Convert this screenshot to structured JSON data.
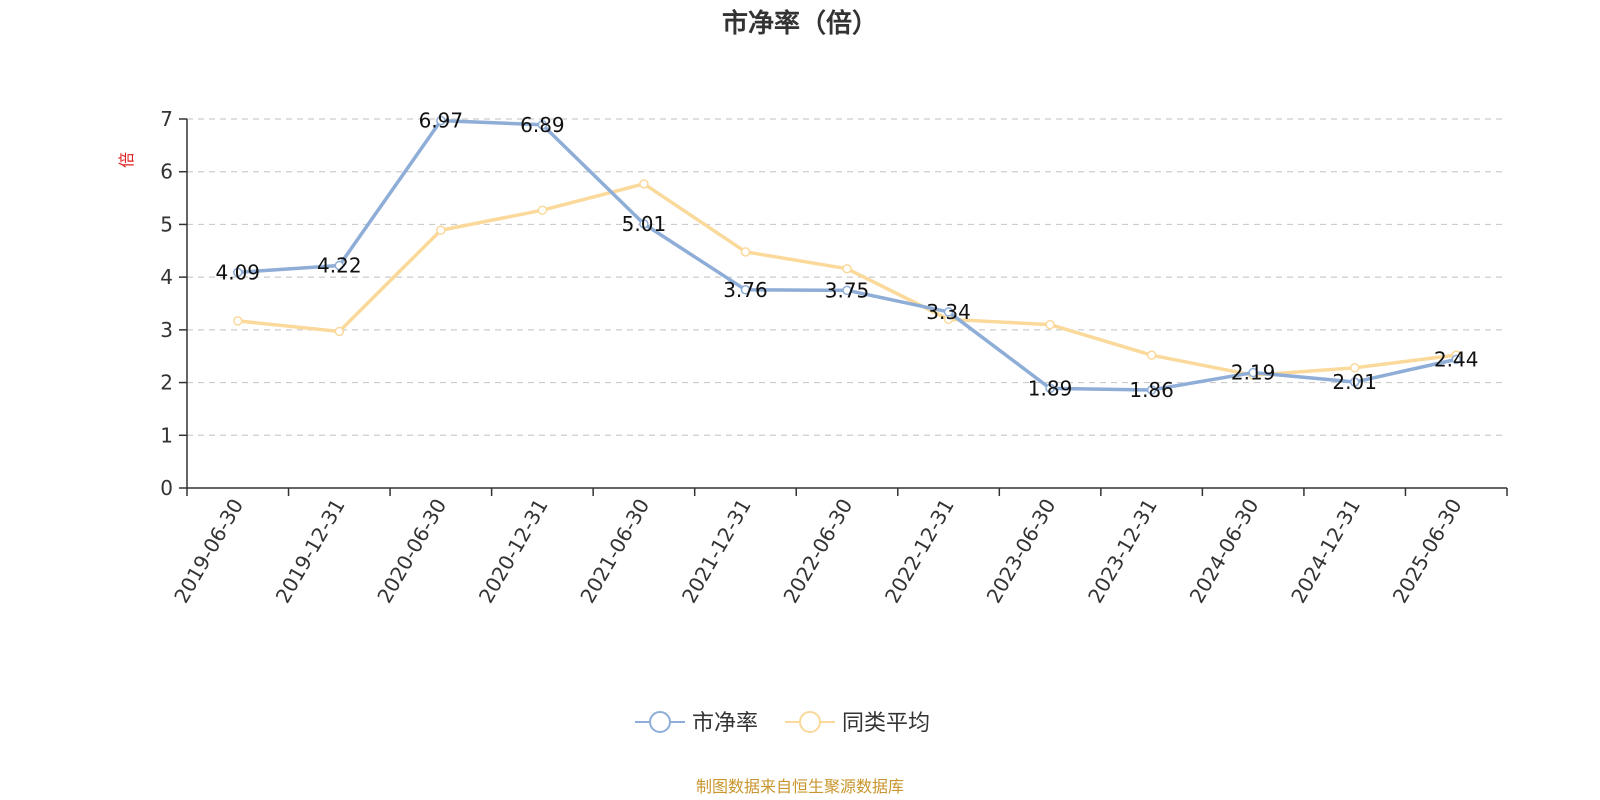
{
  "chart_data": {
    "type": "line",
    "title": "市净率（倍）",
    "ylabel": "倍",
    "xlabel": "",
    "categories": [
      "2019-06-30",
      "2019-12-31",
      "2020-06-30",
      "2020-12-31",
      "2021-06-30",
      "2021-12-31",
      "2022-06-30",
      "2022-12-31",
      "2023-06-30",
      "2023-12-31",
      "2024-06-30",
      "2024-12-31",
      "2025-06-30"
    ],
    "y_ticks": [
      "0",
      "1",
      "2",
      "3",
      "4",
      "5",
      "6",
      "7"
    ],
    "ylim": [
      0,
      7
    ],
    "grid": true,
    "legend_position": "bottom",
    "series": [
      {
        "name": "市净率",
        "color": "#8eadd7",
        "values": [
          4.09,
          4.22,
          6.97,
          6.89,
          5.01,
          3.76,
          3.75,
          3.34,
          1.89,
          1.86,
          2.19,
          2.01,
          2.44
        ],
        "labels": [
          "4.09",
          "4.22",
          "6.97",
          "6.89",
          "5.01",
          "3.76",
          "3.75",
          "3.34",
          "1.89",
          "1.86",
          "2.19",
          "2.01",
          "2.44"
        ]
      },
      {
        "name": "同类平均",
        "color": "#fad99a",
        "values": [
          3.17,
          2.97,
          4.89,
          5.27,
          5.77,
          4.48,
          4.16,
          3.2,
          3.1,
          2.52,
          2.14,
          2.28,
          2.52
        ]
      }
    ],
    "source": "制图数据来自恒生聚源数据库",
    "colors": {
      "axis": "#333333",
      "grid": "#cccccc",
      "unit_label": "#e02020",
      "source": "#c9962e"
    }
  }
}
